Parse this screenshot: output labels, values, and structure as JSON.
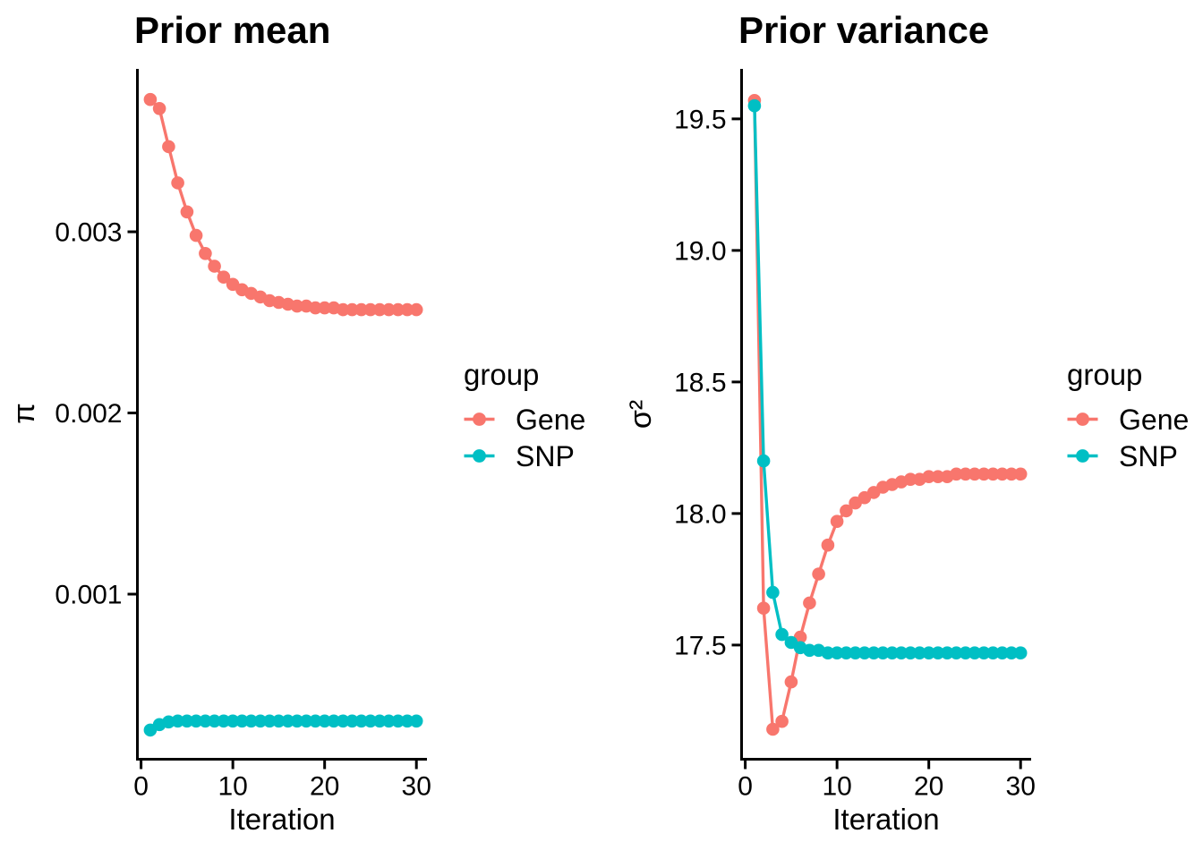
{
  "figure": {
    "background": "#ffffff"
  },
  "legend": {
    "title": "group",
    "items": [
      {
        "label": "Gene",
        "color": "#F8766D"
      },
      {
        "label": "SNP",
        "color": "#00BFC4"
      }
    ]
  },
  "chart_data": [
    {
      "type": "line",
      "title": "Prior mean",
      "xlabel": "Iteration",
      "ylabel": "π",
      "grid": false,
      "legend_position": "right",
      "x": [
        1,
        2,
        3,
        4,
        5,
        6,
        7,
        8,
        9,
        10,
        11,
        12,
        13,
        14,
        15,
        16,
        17,
        18,
        19,
        20,
        21,
        22,
        23,
        24,
        25,
        26,
        27,
        28,
        29,
        30
      ],
      "x_ticks": [
        0,
        10,
        20,
        30
      ],
      "y_ticks": [
        {
          "v": 0.001,
          "label": "0.001"
        },
        {
          "v": 0.002,
          "label": "0.002"
        },
        {
          "v": 0.003,
          "label": "0.003"
        }
      ],
      "xlim": [
        -0.4,
        31.15
      ],
      "ylim": [
        8.89e-05,
        0.003899
      ],
      "series": [
        {
          "name": "Gene",
          "color": "#F8766D",
          "values": [
            0.00373,
            0.00368,
            0.00347,
            0.00327,
            0.00311,
            0.00298,
            0.00288,
            0.00281,
            0.00275,
            0.00271,
            0.00268,
            0.00266,
            0.00264,
            0.00262,
            0.00261,
            0.0026,
            0.00259,
            0.00259,
            0.00258,
            0.00258,
            0.00258,
            0.00257,
            0.00257,
            0.00257,
            0.00257,
            0.00257,
            0.00257,
            0.00257,
            0.00257,
            0.00257
          ]
        },
        {
          "name": "SNP",
          "color": "#00BFC4",
          "values": [
            0.00025,
            0.00028,
            0.000295,
            0.0003,
            0.0003,
            0.0003,
            0.0003,
            0.0003,
            0.0003,
            0.0003,
            0.0003,
            0.0003,
            0.0003,
            0.0003,
            0.0003,
            0.0003,
            0.0003,
            0.0003,
            0.0003,
            0.0003,
            0.0003,
            0.0003,
            0.0003,
            0.0003,
            0.0003,
            0.0003,
            0.0003,
            0.0003,
            0.0003,
            0.0003
          ]
        }
      ]
    },
    {
      "type": "line",
      "title": "Prior variance",
      "xlabel": "Iteration",
      "ylabel": "σ²",
      "grid": false,
      "legend_position": "right",
      "x": [
        1,
        2,
        3,
        4,
        5,
        6,
        7,
        8,
        9,
        10,
        11,
        12,
        13,
        14,
        15,
        16,
        17,
        18,
        19,
        20,
        21,
        22,
        23,
        24,
        25,
        26,
        27,
        28,
        29,
        30
      ],
      "x_ticks": [
        0,
        10,
        20,
        30
      ],
      "y_ticks": [
        {
          "v": 17.5,
          "label": "17.5"
        },
        {
          "v": 18.0,
          "label": "18.0"
        },
        {
          "v": 18.5,
          "label": "18.5"
        },
        {
          "v": 19.0,
          "label": "19.0"
        },
        {
          "v": 19.5,
          "label": "19.5"
        }
      ],
      "xlim": [
        -0.4,
        31.15
      ],
      "ylim": [
        17.066,
        19.69
      ],
      "series": [
        {
          "name": "Gene",
          "color": "#F8766D",
          "values": [
            19.57,
            17.64,
            17.18,
            17.21,
            17.36,
            17.53,
            17.66,
            17.77,
            17.88,
            17.97,
            18.01,
            18.04,
            18.06,
            18.08,
            18.1,
            18.11,
            18.12,
            18.13,
            18.13,
            18.14,
            18.14,
            18.14,
            18.15,
            18.15,
            18.15,
            18.15,
            18.15,
            18.15,
            18.15,
            18.15
          ]
        },
        {
          "name": "SNP",
          "color": "#00BFC4",
          "values": [
            19.55,
            18.2,
            17.7,
            17.54,
            17.51,
            17.49,
            17.48,
            17.48,
            17.47,
            17.47,
            17.47,
            17.47,
            17.47,
            17.47,
            17.47,
            17.47,
            17.47,
            17.47,
            17.47,
            17.47,
            17.47,
            17.47,
            17.47,
            17.47,
            17.47,
            17.47,
            17.47,
            17.47,
            17.47,
            17.47
          ]
        }
      ]
    }
  ]
}
